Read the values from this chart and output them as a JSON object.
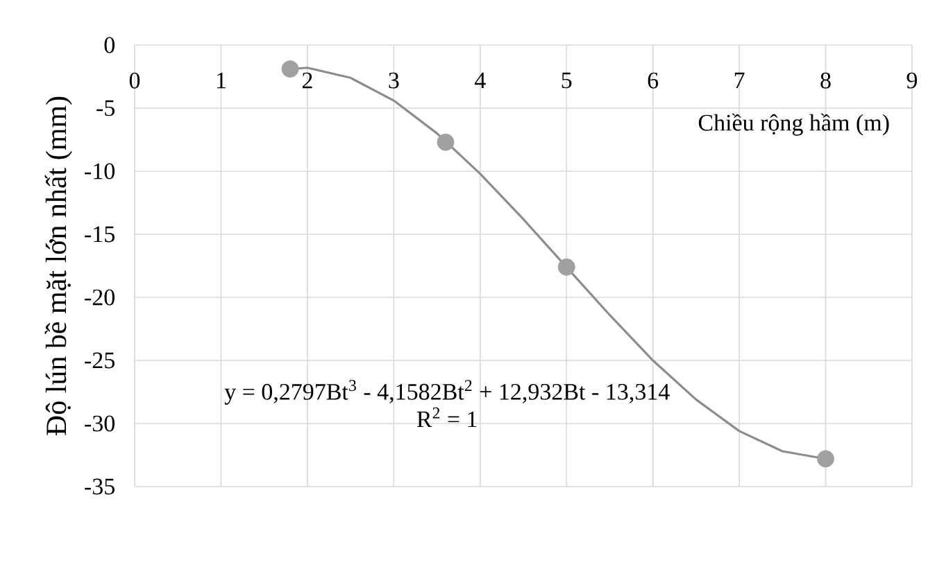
{
  "chart_data": {
    "type": "scatter",
    "xlabel": "Chiều rộng hầm (m)",
    "ylabel": "Độ lún bề mặt lớn nhất (mm)",
    "xlim": [
      0,
      9
    ],
    "ylim": [
      -35,
      0
    ],
    "xticks": [
      0,
      1,
      2,
      3,
      4,
      5,
      6,
      7,
      8,
      9
    ],
    "yticks": [
      -35,
      -30,
      -25,
      -20,
      -15,
      -10,
      -5,
      0
    ],
    "grid": true,
    "marker": "circle",
    "series": [
      {
        "type": "line",
        "color": "#8c8c8c",
        "marker": "none",
        "x": [
          1.8,
          2,
          2.5,
          3,
          3.5,
          4,
          4.5,
          5,
          5.5,
          6,
          6.5,
          7,
          7.5,
          8
        ],
        "values": [
          -1.9,
          -1.8,
          -2.6,
          -4.4,
          -7.0,
          -10.2,
          -13.8,
          -17.6,
          -21.4,
          -25.0,
          -28.1,
          -30.6,
          -32.2,
          -32.8
        ]
      },
      {
        "color": "#a0a0a0",
        "x": [
          1.8,
          3.6,
          5,
          8
        ],
        "values": [
          -1.9,
          -7.7,
          -17.6,
          -32.8
        ]
      }
    ],
    "annotations": [
      "y = 0,2797Bt$^{3}$ - 4,1582Bt$^{2}$ + 12,932Bt - 13,314",
      "R$^{2}$ = 1"
    ]
  }
}
